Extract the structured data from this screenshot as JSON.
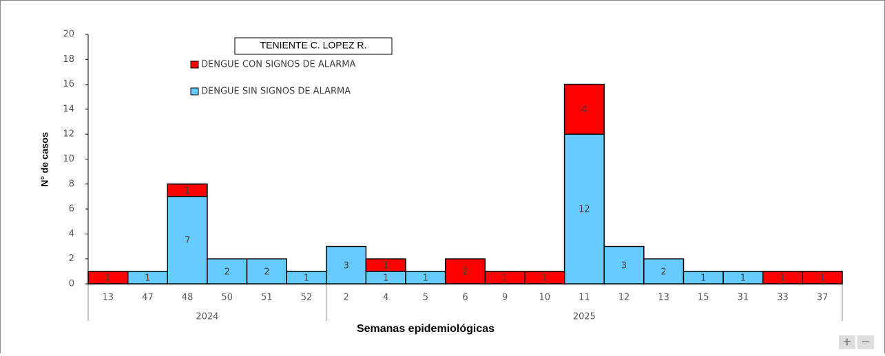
{
  "chart_data": {
    "type": "stacked_bar",
    "title": "TENIENTE C. LOPEZ R.",
    "y_label": "N° de casos",
    "x_label": "Semanas epidemiológicas",
    "groups": [
      {
        "name": "2024",
        "categories": [
          "13",
          "47",
          "48",
          "50",
          "51",
          "52"
        ]
      },
      {
        "name": "2025",
        "categories": [
          "2",
          "4",
          "5",
          "6",
          "9",
          "10",
          "11",
          "12",
          "13",
          "15",
          "31",
          "33",
          "37"
        ]
      }
    ],
    "series": [
      {
        "name": "DENGUE SIN SIGNOS DE ALARMA",
        "color": "#66ccff",
        "values": [
          null,
          1,
          7,
          2,
          2,
          1,
          3,
          1,
          1,
          null,
          null,
          null,
          12,
          3,
          2,
          1,
          1,
          null,
          null
        ]
      },
      {
        "name": "DENGUE CON SIGNOS DE ALARMA",
        "color": "#ff0000",
        "values": [
          1,
          null,
          1,
          null,
          null,
          null,
          null,
          1,
          null,
          2,
          1,
          1,
          4,
          null,
          null,
          null,
          null,
          1,
          1
        ]
      }
    ],
    "ylim": [
      0,
      20
    ],
    "yticks": [
      0,
      2,
      4,
      6,
      8,
      10,
      12,
      14,
      16,
      18,
      20
    ]
  },
  "zoom_controls": [
    "+",
    "−"
  ]
}
